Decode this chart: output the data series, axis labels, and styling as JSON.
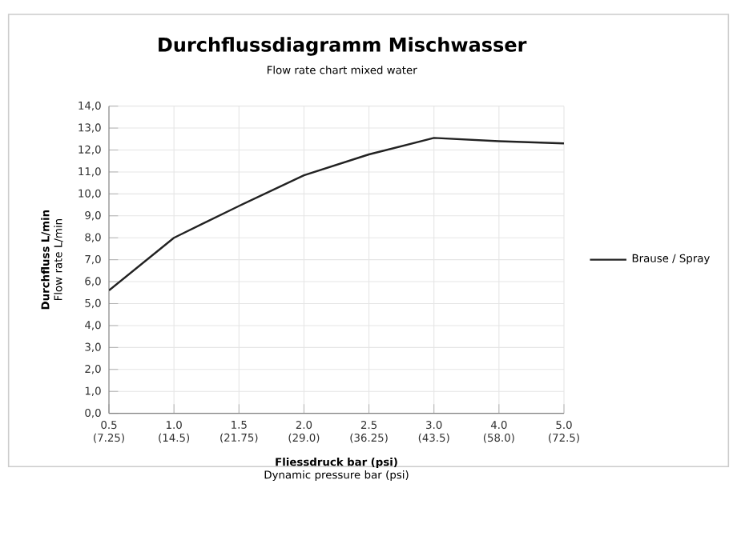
{
  "chart_data": {
    "type": "line",
    "title": "Durchflussdiagramm Mischwasser",
    "subtitle": "Flow rate chart mixed water",
    "xlabel": "**Fliessdruck bar (psi)** Dynamic pressure bar (psi)",
    "ylabel": "**Durchfluss L/min** Flow rate L/min",
    "categories": [
      "0.5 (7.25)",
      "1.0 (14.5)",
      "1.5 (21.75)",
      "2.0 (29.0)",
      "2.5 (36.25)",
      "3.0 (43.5)",
      "4.0 (58.0)",
      "5.0 (72.5)"
    ],
    "series": [
      {
        "name": "Brause / Spray",
        "color": "#222222",
        "values": [
          5.6,
          8.0,
          9.45,
          10.85,
          11.8,
          12.55,
          12.4,
          12.3
        ]
      }
    ],
    "ylim": [
      0,
      14
    ],
    "yticks": [
      {
        "value": 0,
        "label": "0,0"
      },
      {
        "value": 1,
        "label": "1,0"
      },
      {
        "value": 2,
        "label": "2,0"
      },
      {
        "value": 3,
        "label": "3,0"
      },
      {
        "value": 4,
        "label": "4,0"
      },
      {
        "value": 5,
        "label": "5,0"
      },
      {
        "value": 6,
        "label": "6,0"
      },
      {
        "value": 7,
        "label": "7,0"
      },
      {
        "value": 8,
        "label": "8,0"
      },
      {
        "value": 9,
        "label": "9,0"
      },
      {
        "value": 10,
        "label": "10,0"
      },
      {
        "value": 11,
        "label": "11,0"
      },
      {
        "value": 12,
        "label": "12,0"
      },
      {
        "value": 13,
        "label": "13,0"
      },
      {
        "value": 14,
        "label": "14,0"
      }
    ],
    "grid": true,
    "legend": "right",
    "marker": "none",
    "line_style": "solid"
  }
}
